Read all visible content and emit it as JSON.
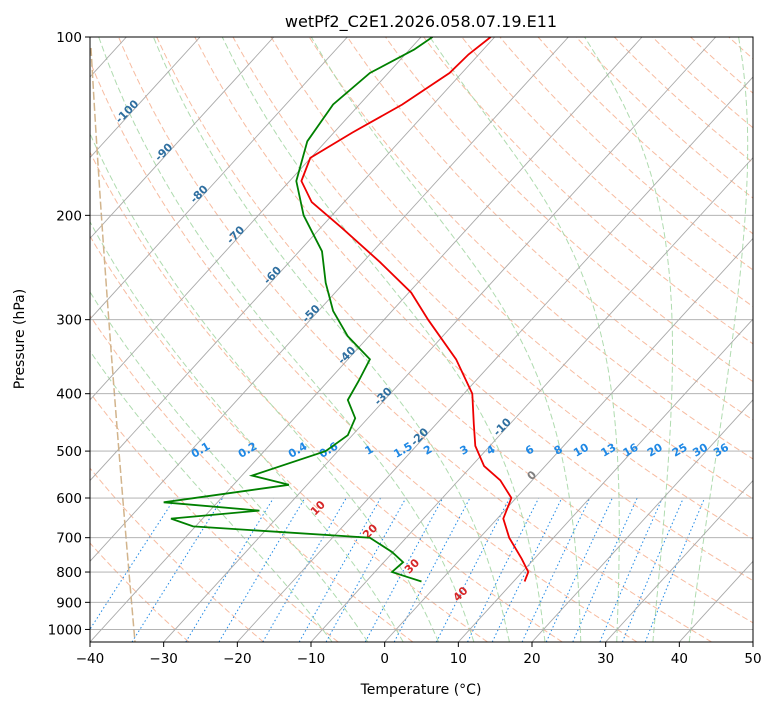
{
  "chart_data": {
    "type": "line",
    "title": "wetPf2_C2E1.2026.058.07.19.E11",
    "xlabel": "Temperature (°C)",
    "ylabel": "Pressure (hPa)",
    "xlim": [
      -40,
      50
    ],
    "ylim": [
      1050,
      100
    ],
    "y_scale": "log",
    "x_ticks": [
      "−40",
      "−30",
      "−20",
      "−10",
      "0",
      "10",
      "20",
      "30",
      "40",
      "50"
    ],
    "y_ticks": [
      "100",
      "200",
      "300",
      "400",
      "500",
      "600",
      "700",
      "800",
      "900",
      "1000"
    ],
    "grid": true,
    "colors": {
      "temperature": "#ee0000",
      "dewpoint": "#008000",
      "isotherm": "#a9a9a9",
      "dry_adiabat": "#f4a582",
      "moist_adiabat": "#a6d7a6",
      "mixing_ratio": "#1e88e5",
      "mixing_ratio_label": "#1e88e5",
      "isotherm_label": "#2f6fa0",
      "warm_isotherm_label": "#d62728",
      "zero_isotherm_label": "#808080",
      "extra_curve": "#d2b48c"
    },
    "series": [
      {
        "name": "",
        "color": "#ee0000",
        "x": [
          19,
          19.5,
          18.6,
          16.9,
          16.1,
          17.2,
          15.7,
          13.5,
          12.3,
          12.1,
          11.9,
          9.7,
          5.9,
          3.6,
          -0.6,
          -5.8,
          -9.9,
          -11.3,
          -10.1,
          -4.4,
          2.4,
          8.8,
          11.4,
          14.4
        ],
        "y": [
          830,
          800,
          760,
          700,
          650,
          600,
          560,
          530,
          490,
          450,
          400,
          350,
          300,
          270,
          240,
          210,
          190,
          175,
          160,
          145,
          130,
          115,
          107,
          100
        ]
      },
      {
        "name": "",
        "color": "#008000",
        "x": [
          5,
          3,
          1,
          2.5,
          1,
          -2,
          -26,
          -29,
          -17,
          -30,
          -13,
          -18,
          -8,
          -5,
          -4,
          -5,
          -3.5,
          -2,
          -5,
          -7,
          -8,
          -8.5,
          -11,
          -12,
          -10.5,
          -7,
          -2,
          4,
          6.5
        ],
        "y": [
          830,
          815,
          800,
          770,
          740,
          700,
          670,
          650,
          630,
          610,
          570,
          550,
          500,
          470,
          440,
          410,
          380,
          350,
          320,
          290,
          260,
          230,
          200,
          175,
          150,
          130,
          115,
          105,
          100
        ]
      }
    ],
    "isotherm_labels": [
      "-100",
      "-90",
      "-80",
      "-70",
      "-60",
      "-50",
      "-40",
      "-30",
      "-20",
      "-10",
      "0",
      "10",
      "20",
      "30",
      "40"
    ],
    "mixing_ratio_labels": [
      "0.1",
      "0.2",
      "0.4",
      "0.6",
      "1",
      "1.5",
      "2",
      "3",
      "4",
      "6",
      "8",
      "10",
      "13",
      "16",
      "20",
      "25",
      "30",
      "36"
    ]
  }
}
